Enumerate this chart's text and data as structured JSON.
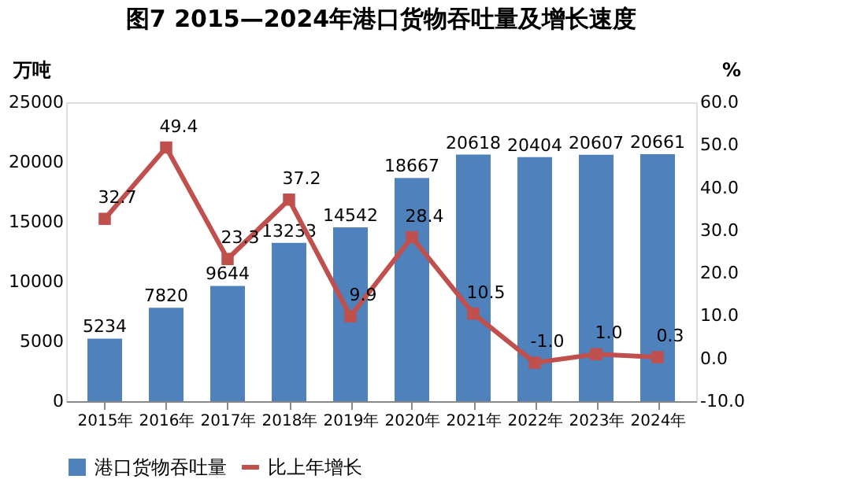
{
  "chart_data": {
    "type": "bar",
    "title": "图7 2015—2024年港口货物吞吐量及增长速度",
    "categories": [
      "2015年",
      "2016年",
      "2017年",
      "2018年",
      "2019年",
      "2020年",
      "2021年",
      "2022年",
      "2023年",
      "2024年"
    ],
    "ylabel": "万吨",
    "y2label": "%",
    "series": [
      {
        "name": "港口货物吞吐量",
        "color": "#4f81bd",
        "values": [
          5234,
          7820,
          9644,
          13233,
          14542,
          18667,
          20618,
          20404,
          20607,
          20661
        ]
      },
      {
        "name": "比上年增长",
        "type": "line",
        "axis": "y2",
        "color": "#c0504d",
        "marker": "square",
        "values": [
          32.7,
          49.4,
          23.3,
          37.2,
          9.9,
          28.4,
          10.5,
          -1.0,
          1.0,
          0.3
        ],
        "value_labels": [
          "32.7",
          "49.4",
          "23.3",
          "37.2",
          "9.9",
          "28.4",
          "10.5",
          "-1.0",
          "1.0",
          "0.3"
        ]
      }
    ],
    "ylim": [
      0,
      25000
    ],
    "yticks": [
      0,
      5000,
      10000,
      15000,
      20000,
      25000
    ],
    "y2lim": [
      -10,
      60
    ],
    "y2ticks": [
      {
        "value": -10,
        "label": "-10.0"
      },
      {
        "value": 0,
        "label": "0.0"
      },
      {
        "value": 10,
        "label": "10.0"
      },
      {
        "value": 20,
        "label": "20.0"
      },
      {
        "value": 30,
        "label": "30.0"
      },
      {
        "value": 40,
        "label": "40.0"
      },
      {
        "value": 50,
        "label": "50.0"
      },
      {
        "value": 60,
        "label": "60.0"
      }
    ],
    "data_labels": true,
    "legend": "bottom",
    "grid": false
  }
}
